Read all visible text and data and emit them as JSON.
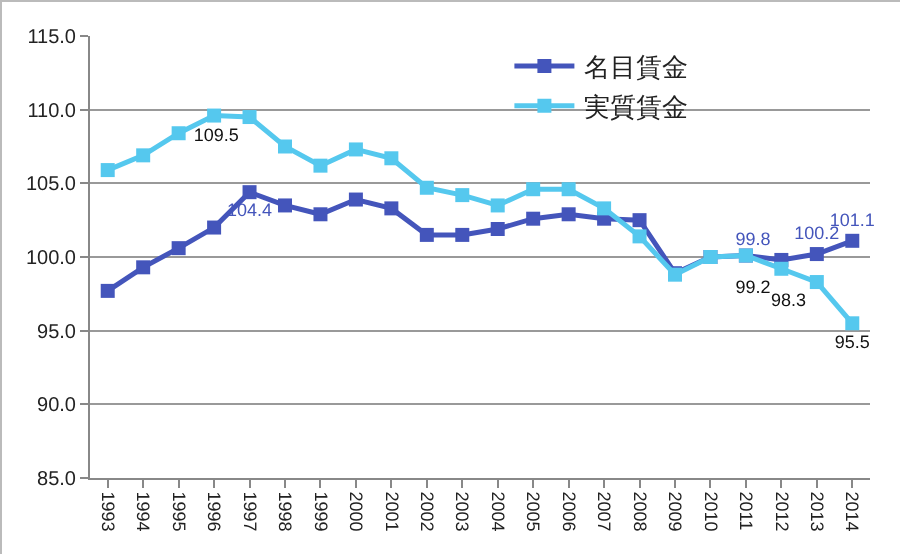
{
  "chart_data": {
    "type": "line",
    "categories": [
      "1993",
      "1994",
      "1995",
      "1996",
      "1997",
      "1998",
      "1999",
      "2000",
      "2001",
      "2002",
      "2003",
      "2004",
      "2005",
      "2006",
      "2007",
      "2008",
      "2009",
      "2010",
      "2011",
      "2012",
      "2013",
      "2014"
    ],
    "series": [
      {
        "name": "名目賃金",
        "color": "#4455bb",
        "values": [
          97.7,
          99.3,
          100.6,
          102.0,
          104.4,
          103.5,
          102.9,
          103.9,
          103.3,
          101.5,
          101.5,
          101.9,
          102.6,
          102.9,
          102.6,
          102.5,
          98.9,
          100.0,
          100.1,
          99.8,
          100.2,
          101.1
        ],
        "value_labels": [
          null,
          null,
          null,
          null,
          "104.4",
          null,
          null,
          null,
          null,
          null,
          null,
          null,
          null,
          null,
          null,
          null,
          null,
          null,
          null,
          "99.8",
          "100.2",
          "101.1"
        ]
      },
      {
        "name": "実質賃金",
        "color": "#55c8ee",
        "values": [
          105.9,
          106.9,
          108.4,
          109.6,
          109.5,
          107.5,
          106.2,
          107.3,
          106.7,
          104.7,
          104.2,
          103.5,
          104.6,
          104.6,
          103.3,
          101.4,
          98.8,
          100.0,
          100.1,
          99.2,
          98.3,
          95.5
        ],
        "value_labels": [
          null,
          null,
          null,
          null,
          "109.5",
          null,
          null,
          null,
          null,
          null,
          null,
          null,
          null,
          null,
          null,
          null,
          null,
          null,
          null,
          "99.2",
          "98.3",
          "95.5"
        ]
      }
    ],
    "ylim": [
      85,
      115
    ],
    "yticks": [
      {
        "value": 85,
        "label": "85.0"
      },
      {
        "value": 90,
        "label": "90.0"
      },
      {
        "value": 95,
        "label": "95.0"
      },
      {
        "value": 100,
        "label": "100.0"
      },
      {
        "value": 105,
        "label": "105.0"
      },
      {
        "value": 110,
        "label": "110.0"
      },
      {
        "value": 115,
        "label": "115.0"
      }
    ],
    "grid": "y",
    "legend": "top right",
    "marker": "square",
    "line_style": "solid"
  }
}
